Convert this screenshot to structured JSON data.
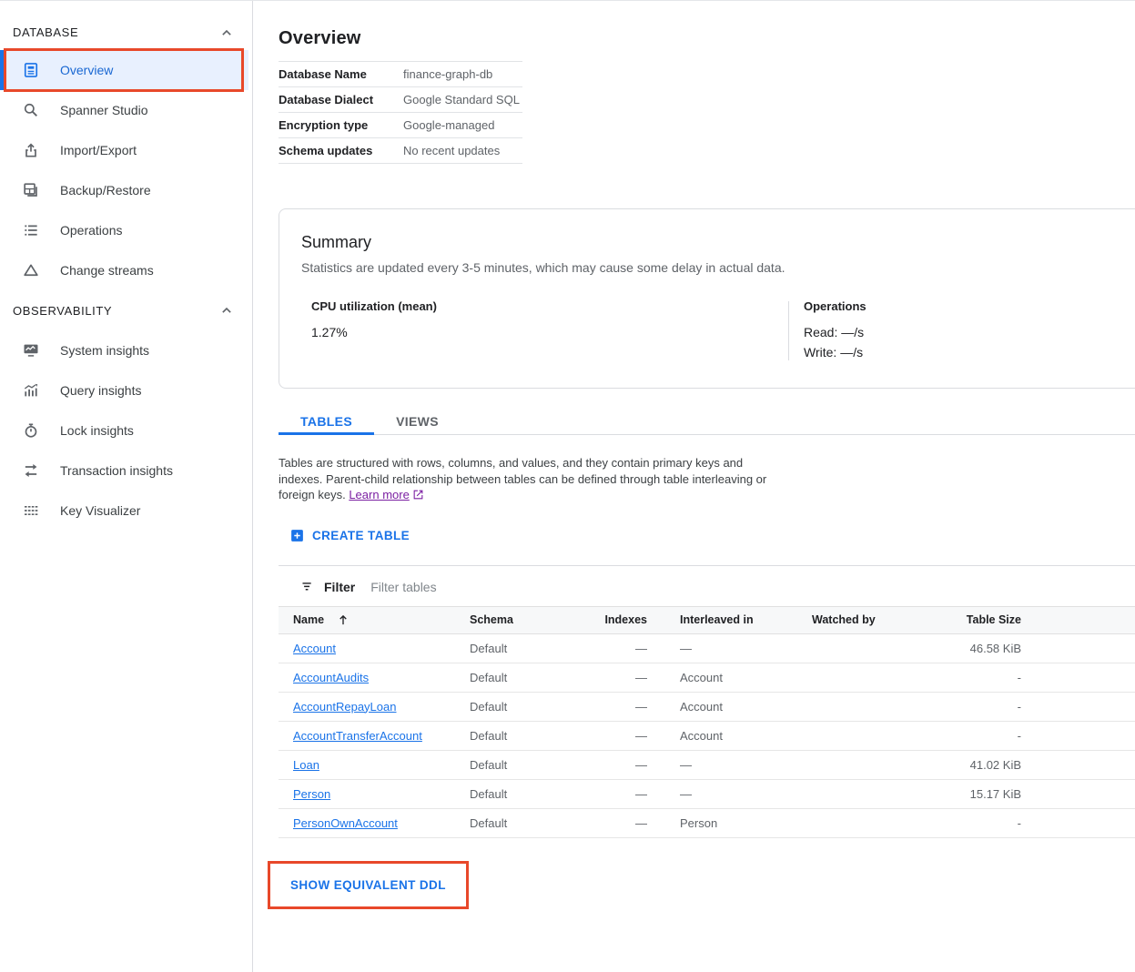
{
  "colors": {
    "accent": "#1a73e8",
    "annotation_red": "#e8482a",
    "selected_bg": "#e8f0fe",
    "visited_link": "#7b1fa2"
  },
  "page": {
    "title": "Overview"
  },
  "sidebar": {
    "sections": [
      {
        "label": "DATABASE",
        "collapse_icon": "chevron-up-icon",
        "items": [
          {
            "label": "Overview",
            "icon": "book-icon",
            "selected": true,
            "annotated": true
          },
          {
            "label": "Spanner Studio",
            "icon": "search-icon"
          },
          {
            "label": "Import/Export",
            "icon": "upload-icon"
          },
          {
            "label": "Backup/Restore",
            "icon": "backup-restore-icon"
          },
          {
            "label": "Operations",
            "icon": "list-icon"
          },
          {
            "label": "Change streams",
            "icon": "triangle-icon"
          }
        ]
      },
      {
        "label": "OBSERVABILITY",
        "collapse_icon": "chevron-up-icon",
        "items": [
          {
            "label": "System insights",
            "icon": "monitor-chart-icon"
          },
          {
            "label": "Query insights",
            "icon": "chart-insights-icon"
          },
          {
            "label": "Lock insights",
            "icon": "stopwatch-icon"
          },
          {
            "label": "Transaction insights",
            "icon": "swap-arrows-icon"
          },
          {
            "label": "Key Visualizer",
            "icon": "grid-icon"
          }
        ]
      }
    ]
  },
  "details": {
    "rows": [
      {
        "label": "Database Name",
        "value": "finance-graph-db"
      },
      {
        "label": "Database Dialect",
        "value": "Google Standard SQL"
      },
      {
        "label": "Encryption type",
        "value": "Google-managed"
      },
      {
        "label": "Schema updates",
        "value": "No recent updates"
      }
    ]
  },
  "summary": {
    "title": "Summary",
    "note": "Statistics are updated every 3-5 minutes, which may cause some delay in actual data.",
    "cpu_label": "CPU utilization (mean)",
    "cpu_value": "1.27%",
    "operations_label": "Operations",
    "read_value": "Read: —/s",
    "write_value": "Write: —/s"
  },
  "tabs": [
    {
      "label": "TABLES",
      "active": true
    },
    {
      "label": "VIEWS",
      "active": false
    }
  ],
  "tables_section": {
    "intro": "Tables are structured with rows, columns, and values, and they contain primary keys and indexes. Parent-child relationship between tables can be defined through table interleaving or foreign keys. ",
    "learn_more_label": "Learn more",
    "create_table_label": "CREATE TABLE"
  },
  "filter": {
    "label": "Filter",
    "placeholder": "Filter tables"
  },
  "table": {
    "columns": [
      "Name",
      "Schema",
      "Indexes",
      "Interleaved in",
      "Watched by",
      "Table Size"
    ],
    "sort_column": "Name",
    "sort_direction": "ascending",
    "rows": [
      {
        "name": "Account",
        "schema": "Default",
        "indexes": "—",
        "interleaved_in": "—",
        "watched_by": "",
        "table_size": "46.58 KiB"
      },
      {
        "name": "AccountAudits",
        "schema": "Default",
        "indexes": "—",
        "interleaved_in": "Account",
        "watched_by": "",
        "table_size": "-"
      },
      {
        "name": "AccountRepayLoan",
        "schema": "Default",
        "indexes": "—",
        "interleaved_in": "Account",
        "watched_by": "",
        "table_size": "-"
      },
      {
        "name": "AccountTransferAccount",
        "schema": "Default",
        "indexes": "—",
        "interleaved_in": "Account",
        "watched_by": "",
        "table_size": "-"
      },
      {
        "name": "Loan",
        "schema": "Default",
        "indexes": "—",
        "interleaved_in": "—",
        "watched_by": "",
        "table_size": "41.02 KiB"
      },
      {
        "name": "Person",
        "schema": "Default",
        "indexes": "—",
        "interleaved_in": "—",
        "watched_by": "",
        "table_size": "15.17 KiB"
      },
      {
        "name": "PersonOwnAccount",
        "schema": "Default",
        "indexes": "—",
        "interleaved_in": "Person",
        "watched_by": "",
        "table_size": "-"
      }
    ]
  },
  "ddl": {
    "button_label": "SHOW EQUIVALENT DDL"
  }
}
